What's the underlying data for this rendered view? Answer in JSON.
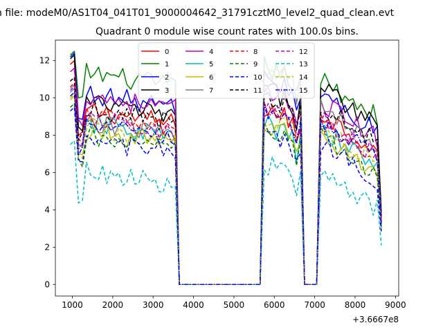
{
  "figure": {
    "suptitle": "n file: modeM0/AS1T04_041T01_9000004642_31791cztM0_level2_quad_clean.evt",
    "title": "Quadrant 0 module wise count rates with 100.0s bins.",
    "x_offset_label": "+3.6667e8"
  },
  "chart_data": {
    "type": "line",
    "title": "Quadrant 0 module wise count rates with 100.0s bins.",
    "xlabel": "",
    "ylabel": "",
    "xlim": [
      580,
      9080
    ],
    "ylim": [
      -0.62,
      13.1
    ],
    "x_offset": 366670000,
    "xticks": [
      1000,
      2000,
      3000,
      4000,
      5000,
      6000,
      7000,
      8000,
      9000
    ],
    "yticks": [
      0,
      2,
      4,
      6,
      8,
      10,
      12
    ],
    "grid": false,
    "legend": {
      "location": "upper center",
      "ncol": 4
    },
    "segments": [
      {
        "x0": 950,
        "x1": 3550,
        "active": true
      },
      {
        "x0": 3650,
        "x1": 5650,
        "active": false
      },
      {
        "x0": 5750,
        "x1": 6650,
        "active": true
      },
      {
        "x0": 6750,
        "x1": 7050,
        "active": false
      },
      {
        "x0": 7150,
        "x1": 8550,
        "active": true
      }
    ],
    "series": [
      {
        "name": "0",
        "color": "#ff0000",
        "dash": "solid",
        "baseline": 9.0,
        "start": 11.8,
        "seg2_peak": 9.5,
        "seg3_peak": 9.2,
        "end": 3.4
      },
      {
        "name": "1",
        "color": "#008000",
        "dash": "solid",
        "baseline": 11.0,
        "start": 12.3,
        "seg2_peak": 11.7,
        "seg3_peak": 11.0,
        "end": 3.9
      },
      {
        "name": "2",
        "color": "#0000ff",
        "dash": "solid",
        "baseline": 9.9,
        "start": 12.2,
        "seg2_peak": 11.1,
        "seg3_peak": 10.2,
        "end": 3.7
      },
      {
        "name": "3",
        "color": "#000000",
        "dash": "solid",
        "baseline": 9.4,
        "start": 12.1,
        "seg2_peak": 10.5,
        "seg3_peak": 10.6,
        "end": 3.6
      },
      {
        "name": "4",
        "color": "#bf00bf",
        "dash": "solid",
        "baseline": 9.8,
        "start": 11.4,
        "seg2_peak": 10.3,
        "seg3_peak": 9.8,
        "end": 3.5
      },
      {
        "name": "5",
        "color": "#00bfbf",
        "dash": "solid",
        "baseline": 8.3,
        "start": 10.3,
        "seg2_peak": 8.6,
        "seg3_peak": 8.3,
        "end": 3.1
      },
      {
        "name": "6",
        "color": "#bfbf00",
        "dash": "solid",
        "baseline": 7.9,
        "start": 9.9,
        "seg2_peak": 8.7,
        "seg3_peak": 8.0,
        "end": 3.0
      },
      {
        "name": "7",
        "color": "#808080",
        "dash": "solid",
        "baseline": 8.4,
        "start": 10.5,
        "seg2_peak": 11.7,
        "seg3_peak": 9.6,
        "end": 3.2
      },
      {
        "name": "8",
        "color": "#ff0000",
        "dash": "dashed",
        "baseline": 8.7,
        "start": 10.6,
        "seg2_peak": 9.3,
        "seg3_peak": 8.8,
        "end": 3.3
      },
      {
        "name": "9",
        "color": "#008000",
        "dash": "dashed",
        "baseline": 7.6,
        "start": 9.5,
        "seg2_peak": 8.3,
        "seg3_peak": 7.9,
        "end": 2.9
      },
      {
        "name": "10",
        "color": "#0000ff",
        "dash": "dashed",
        "baseline": 7.4,
        "start": 9.3,
        "seg2_peak": 8.1,
        "seg3_peak": 7.6,
        "end": 2.8
      },
      {
        "name": "11",
        "color": "#000000",
        "dash": "dashed",
        "baseline": 9.1,
        "start": 10.9,
        "seg2_peak": 10.1,
        "seg3_peak": 9.6,
        "end": 3.4
      },
      {
        "name": "12",
        "color": "#bf00bf",
        "dash": "dashed",
        "baseline": 8.6,
        "start": 10.4,
        "seg2_peak": 9.3,
        "seg3_peak": 8.9,
        "end": 3.2
      },
      {
        "name": "13",
        "color": "#00bfbf",
        "dash": "dashed",
        "baseline": 5.7,
        "start": 7.5,
        "seg2_peak": 6.5,
        "seg3_peak": 6.0,
        "end": 2.1
      },
      {
        "name": "14",
        "color": "#bfbf00",
        "dash": "dashed",
        "baseline": 8.1,
        "start": 10.0,
        "seg2_peak": 9.0,
        "seg3_peak": 8.5,
        "end": 3.0
      },
      {
        "name": "15",
        "color": "#0000ff",
        "dash": "dashdot",
        "baseline": 8.2,
        "start": 10.1,
        "seg2_peak": 9.2,
        "seg3_peak": 8.8,
        "end": 3.1
      }
    ]
  }
}
